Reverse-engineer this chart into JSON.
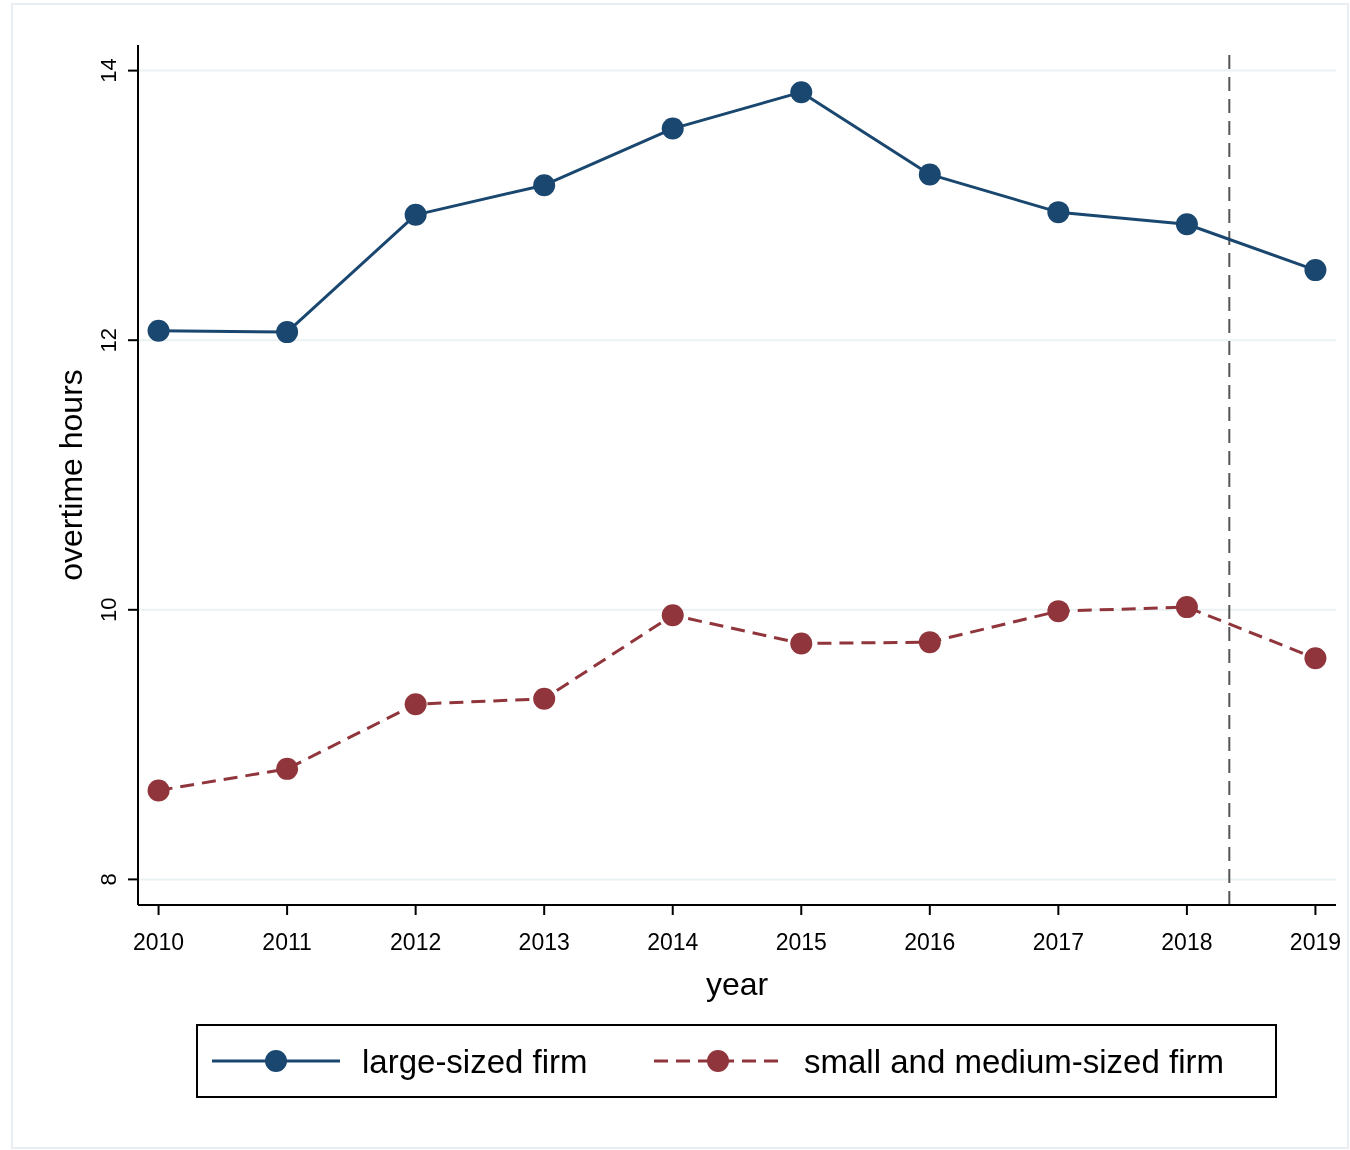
{
  "chart_data": {
    "type": "line",
    "xlabel": "year",
    "ylabel": "overtime hours",
    "x": [
      2010,
      2011,
      2012,
      2013,
      2014,
      2015,
      2016,
      2017,
      2018,
      2019
    ],
    "series": [
      {
        "name": "large-sized firm",
        "color": "#1a476f",
        "line_style": "solid",
        "values": [
          12.07,
          12.06,
          12.93,
          13.15,
          13.57,
          13.84,
          13.23,
          12.95,
          12.86,
          12.52
        ]
      },
      {
        "name": "small and medium-sized firm",
        "color": "#90353b",
        "line_style": "dashed",
        "values": [
          8.66,
          8.82,
          9.3,
          9.34,
          9.96,
          9.75,
          9.76,
          9.99,
          10.02,
          9.64
        ]
      }
    ],
    "xlim": [
      2009.84,
      2019.16
    ],
    "xticks": [
      2010,
      2011,
      2012,
      2013,
      2014,
      2015,
      2016,
      2017,
      2018,
      2019
    ],
    "ylim": [
      7.81,
      14.19
    ],
    "yticks": [
      8,
      10,
      12,
      14
    ],
    "grid": "y",
    "marker": "circle",
    "legend": "bottom",
    "ref_lines": [
      {
        "axis": "x",
        "value": 2018.33,
        "line_style": "dashed",
        "color": "#555555"
      }
    ]
  }
}
